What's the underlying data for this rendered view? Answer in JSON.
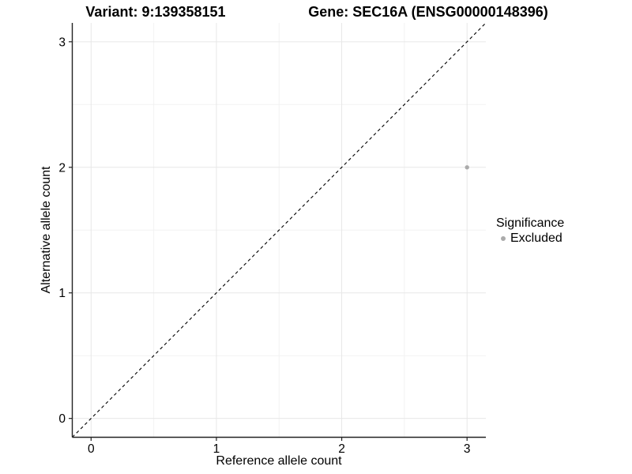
{
  "chart_data": {
    "type": "scatter",
    "title_left": "Variant: 9:139358151",
    "title_right": "Gene: SEC16A (ENSG00000148396)",
    "xlabel": "Reference allele count",
    "ylabel": "Alternative allele count",
    "x_ticks": [
      0,
      1,
      2,
      3
    ],
    "y_ticks": [
      0,
      1,
      2,
      3
    ],
    "x_minor_ticks": [
      0.5,
      1.5,
      2.5
    ],
    "y_minor_ticks": [
      0.5,
      1.5,
      2.5
    ],
    "xlim": [
      -0.15,
      3.15
    ],
    "ylim": [
      -0.15,
      3.15
    ],
    "grid": "major+minor",
    "legend": {
      "title": "Significance",
      "position": "right",
      "items": [
        {
          "label": "Excluded",
          "color": "#ababab"
        }
      ]
    },
    "series": [
      {
        "name": "Excluded",
        "color": "#ababab",
        "points": [
          {
            "x": 3,
            "y": 2
          }
        ]
      }
    ],
    "reference_line": {
      "slope": 1,
      "intercept": 0,
      "style": "dashed",
      "color": "#000000"
    }
  },
  "colors": {
    "grid_major": "#e7e7e7",
    "grid_minor": "#f2f2f2",
    "axis": "#222222",
    "tick_text": "#000000"
  }
}
